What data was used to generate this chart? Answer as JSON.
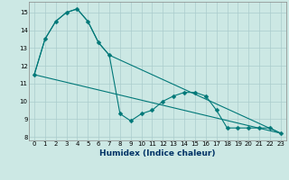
{
  "title": "",
  "xlabel": "Humidex (Indice chaleur)",
  "ylabel": "",
  "background_color": "#cce8e4",
  "grid_color": "#aacccc",
  "line_color": "#007878",
  "xlim": [
    -0.5,
    23.5
  ],
  "ylim": [
    7.8,
    15.6
  ],
  "yticks": [
    8,
    9,
    10,
    11,
    12,
    13,
    14,
    15
  ],
  "xticks": [
    0,
    1,
    2,
    3,
    4,
    5,
    6,
    7,
    8,
    9,
    10,
    11,
    12,
    13,
    14,
    15,
    16,
    17,
    18,
    19,
    20,
    21,
    22,
    23
  ],
  "series": [
    {
      "name": "main_zigzag",
      "x": [
        0,
        1,
        2,
        3,
        4,
        5,
        6,
        7,
        8,
        9,
        10,
        11,
        12,
        13,
        14,
        15,
        16,
        17,
        18,
        19,
        20,
        21,
        22,
        23
      ],
      "y": [
        11.5,
        13.5,
        14.5,
        15.0,
        15.2,
        14.5,
        13.3,
        12.6,
        9.3,
        8.9,
        9.3,
        9.5,
        10.0,
        10.3,
        10.5,
        10.5,
        10.3,
        9.5,
        8.5,
        8.5,
        8.5,
        8.5,
        8.5,
        8.2
      ],
      "with_markers": true,
      "markersize": 2.5
    },
    {
      "name": "upper_line",
      "x": [
        0,
        1,
        2,
        3,
        4,
        5,
        6,
        7,
        23
      ],
      "y": [
        11.5,
        13.5,
        14.5,
        15.0,
        15.2,
        14.5,
        13.3,
        12.6,
        8.2
      ],
      "with_markers": false,
      "markersize": 0
    },
    {
      "name": "lower_line",
      "x": [
        0,
        23
      ],
      "y": [
        11.5,
        8.2
      ],
      "with_markers": false,
      "markersize": 0
    }
  ],
  "tick_fontsize": 5,
  "xlabel_fontsize": 6.5,
  "xlabel_color": "#003366",
  "xlabel_fontweight": "bold"
}
